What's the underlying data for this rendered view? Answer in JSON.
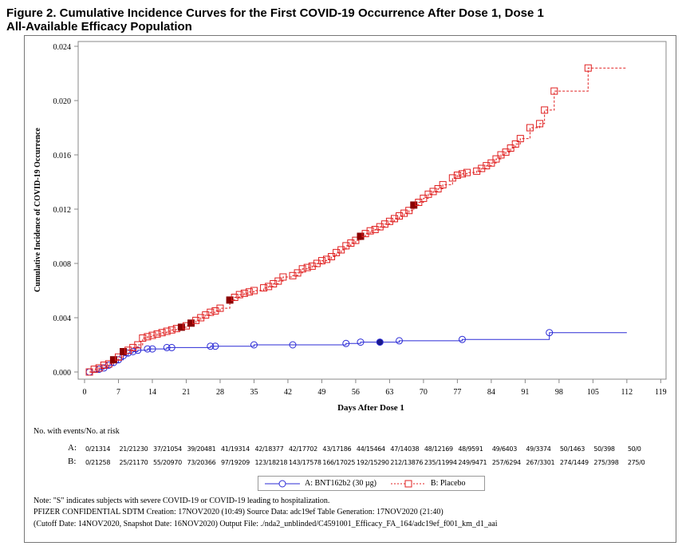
{
  "title_line1": "Figure 2. Cumulative Incidence Curves for the First COVID-19 Occurrence After Dose 1, Dose 1",
  "title_line2": "All-Available Efficacy Population",
  "chart_data": {
    "type": "line",
    "title": "Cumulative Incidence Curves for the First COVID-19 Occurrence After Dose 1",
    "xlabel": "Days After Dose 1",
    "ylabel": "Cumulative Incidence of COVID-19 Occurrence",
    "xlim": [
      0,
      119
    ],
    "ylim": [
      0,
      0.024
    ],
    "xticks": [
      0,
      7,
      14,
      21,
      28,
      35,
      42,
      49,
      56,
      63,
      70,
      77,
      84,
      91,
      98,
      105,
      112,
      119
    ],
    "yticks": [
      "0.000",
      "0.004",
      "0.008",
      "0.012",
      "0.016",
      "0.020",
      "0.024"
    ],
    "grid": false,
    "legend_position": "bottom-center",
    "series": [
      {
        "name": "A: BNT162b2 (30 µg)",
        "color": "#2b2bd6",
        "marker": "circle",
        "line": "solid",
        "end_day": 112,
        "points": [
          [
            1,
            0
          ],
          [
            3,
            0.0002
          ],
          [
            4,
            0.0003
          ],
          [
            5,
            0.0005
          ],
          [
            6,
            0.0007
          ],
          [
            7,
            0.0009
          ],
          [
            8,
            0.0012
          ],
          [
            9,
            0.0014
          ],
          [
            10,
            0.0015
          ],
          [
            11,
            0.0016
          ],
          [
            13,
            0.0017
          ],
          [
            14,
            0.0017
          ],
          [
            17,
            0.0018
          ],
          [
            18,
            0.0018
          ],
          [
            26,
            0.0019
          ],
          [
            27,
            0.0019
          ],
          [
            35,
            0.002
          ],
          [
            43,
            0.002
          ],
          [
            54,
            0.0021
          ],
          [
            57,
            0.0022
          ],
          [
            61,
            0.0022
          ],
          [
            65,
            0.0023
          ],
          [
            78,
            0.0024
          ],
          [
            96,
            0.0029
          ]
        ],
        "severe_days": [
          61
        ]
      },
      {
        "name": "B: Placebo",
        "color": "#e02020",
        "marker": "square",
        "line": "dashed",
        "end_day": 112,
        "points": [
          [
            1,
            0
          ],
          [
            2,
            0.0002
          ],
          [
            3,
            0.0003
          ],
          [
            4,
            0.0005
          ],
          [
            5,
            0.0006
          ],
          [
            6,
            0.0009
          ],
          [
            7,
            0.0011
          ],
          [
            8,
            0.0015
          ],
          [
            9,
            0.0016
          ],
          [
            10,
            0.0018
          ],
          [
            11,
            0.002
          ],
          [
            12,
            0.0025
          ],
          [
            13,
            0.0026
          ],
          [
            14,
            0.0027
          ],
          [
            15,
            0.0028
          ],
          [
            16,
            0.0029
          ],
          [
            17,
            0.003
          ],
          [
            18,
            0.0031
          ],
          [
            19,
            0.0032
          ],
          [
            20,
            0.0033
          ],
          [
            21,
            0.0034
          ],
          [
            22,
            0.0036
          ],
          [
            23,
            0.0038
          ],
          [
            24,
            0.004
          ],
          [
            25,
            0.0042
          ],
          [
            26,
            0.0044
          ],
          [
            27,
            0.0045
          ],
          [
            28,
            0.0047
          ],
          [
            30,
            0.0053
          ],
          [
            31,
            0.0055
          ],
          [
            32,
            0.0057
          ],
          [
            33,
            0.0058
          ],
          [
            34,
            0.0059
          ],
          [
            35,
            0.006
          ],
          [
            37,
            0.0062
          ],
          [
            38,
            0.0063
          ],
          [
            39,
            0.0065
          ],
          [
            40,
            0.0067
          ],
          [
            41,
            0.007
          ],
          [
            43,
            0.0071
          ],
          [
            44,
            0.0073
          ],
          [
            45,
            0.0076
          ],
          [
            46,
            0.0077
          ],
          [
            47,
            0.0078
          ],
          [
            48,
            0.008
          ],
          [
            49,
            0.0082
          ],
          [
            50,
            0.0083
          ],
          [
            51,
            0.0085
          ],
          [
            52,
            0.0088
          ],
          [
            53,
            0.009
          ],
          [
            54,
            0.0093
          ],
          [
            55,
            0.0095
          ],
          [
            56,
            0.0097
          ],
          [
            57,
            0.01
          ],
          [
            58,
            0.0102
          ],
          [
            59,
            0.0104
          ],
          [
            60,
            0.0105
          ],
          [
            61,
            0.0107
          ],
          [
            62,
            0.0109
          ],
          [
            63,
            0.0111
          ],
          [
            64,
            0.0113
          ],
          [
            65,
            0.0115
          ],
          [
            66,
            0.0117
          ],
          [
            67,
            0.0119
          ],
          [
            68,
            0.0123
          ],
          [
            69,
            0.0125
          ],
          [
            70,
            0.0128
          ],
          [
            71,
            0.0131
          ],
          [
            72,
            0.0133
          ],
          [
            73,
            0.0135
          ],
          [
            74,
            0.0138
          ],
          [
            76,
            0.0143
          ],
          [
            77,
            0.0145
          ],
          [
            78,
            0.0146
          ],
          [
            79,
            0.0147
          ],
          [
            81,
            0.0148
          ],
          [
            82,
            0.015
          ],
          [
            83,
            0.0152
          ],
          [
            84,
            0.0154
          ],
          [
            85,
            0.0157
          ],
          [
            86,
            0.016
          ],
          [
            87,
            0.0162
          ],
          [
            88,
            0.0165
          ],
          [
            89,
            0.0168
          ],
          [
            90,
            0.0172
          ],
          [
            92,
            0.018
          ],
          [
            94,
            0.0183
          ],
          [
            95,
            0.0193
          ],
          [
            97,
            0.0207
          ],
          [
            104,
            0.0224
          ]
        ],
        "severe_days": [
          6,
          8,
          20,
          22,
          30,
          57,
          68
        ]
      }
    ]
  },
  "risk_table": {
    "header": "No. with events/No. at risk",
    "rows": [
      {
        "label": "A:",
        "values": [
          "0/21314",
          "21/21230",
          "37/21054",
          "39/20481",
          "41/19314",
          "42/18377",
          "42/17702",
          "43/17186",
          "44/15464",
          "47/14038",
          "48/12169",
          "48/9591",
          "49/6403",
          "49/3374",
          "50/1463",
          "50/398",
          "50/0"
        ]
      },
      {
        "label": "B:",
        "values": [
          "0/21258",
          "25/21170",
          "55/20970",
          "73/20366",
          "97/19209",
          "123/18218",
          "143/17578",
          "166/17025",
          "192/15290",
          "212/13876",
          "235/11994",
          "249/9471",
          "257/6294",
          "267/3301",
          "274/1449",
          "275/398",
          "275/0"
        ]
      }
    ]
  },
  "legend": {
    "a": "A: BNT162b2 (30 µg)",
    "b": "B: Placebo"
  },
  "footnotes": [
    "Note: \"S\" indicates subjects with severe COVID-19 or COVID-19 leading to hospitalization.",
    "PFIZER CONFIDENTIAL  SDTM Creation: 17NOV2020 (10:49)  Source Data: adc19ef  Table Generation: 17NOV2020 (21:40)",
    "(Cutoff Date: 14NOV2020, Snapshot Date: 16NOV2020) Output File: ./nda2_unblinded/C4591001_Efficacy_FA_164/adc19ef_f001_km_d1_aai"
  ]
}
